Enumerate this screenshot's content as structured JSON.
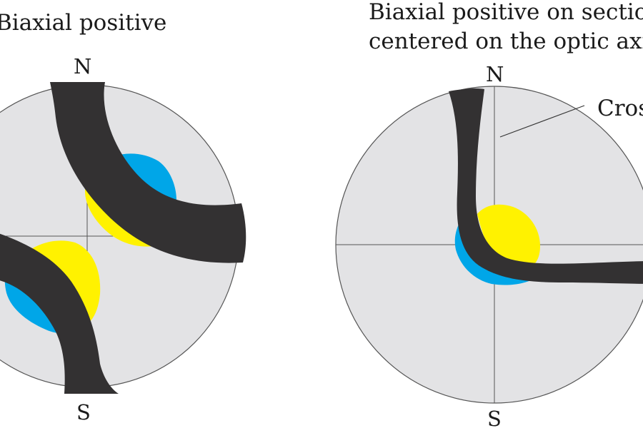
{
  "left_figure": {
    "title": "Biaxial positive",
    "north_label": "N",
    "south_label": "S"
  },
  "right_figure": {
    "title_line1": "Biaxial positive on sectio",
    "title_line2": "centered on the optic axis",
    "north_label": "N",
    "south_label": "S",
    "callout_label": "Cros"
  },
  "colors": {
    "field": "#e3e3e5",
    "isogyre": "#333132",
    "yellow": "#fff200",
    "blue": "#00a6e8",
    "outline": "#555555"
  }
}
